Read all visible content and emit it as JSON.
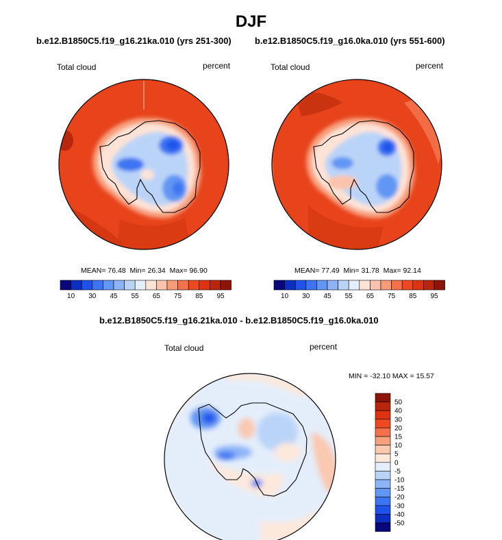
{
  "season_title": "DJF",
  "panels": [
    {
      "case": "b.e12.B1850C5.f19_g16.21ka.010 (yrs 251-300)",
      "variable": "Total cloud",
      "units": "percent",
      "stats": {
        "mean_label": "MEAN=",
        "mean": "76.48",
        "min_label": "Min=",
        "min": "26.34",
        "max_label": "Max=",
        "max": "96.90"
      }
    },
    {
      "case": "b.e12.B1850C5.f19_g16.0ka.010 (yrs 551-600)",
      "variable": "Total cloud",
      "units": "percent",
      "stats": {
        "mean_label": "MEAN=",
        "mean": "77.49",
        "min_label": "Min=",
        "min": "31.78",
        "max_label": "Max=",
        "max": "92.14"
      }
    }
  ],
  "difference": {
    "title": "b.e12.B1850C5.f19_g16.21ka.010 - b.e12.B1850C5.f19_g16.0ka.010",
    "variable": "Total cloud",
    "units": "percent",
    "minmax": "MIN = -32.10 MAX =  15.57"
  },
  "colors": {
    "abs_scale": [
      "#08087a",
      "#0c2fc0",
      "#1f52ea",
      "#3c74f2",
      "#6296f4",
      "#8db4f6",
      "#bad4f8",
      "#e4eefb",
      "#fde3d6",
      "#fbc3ab",
      "#f79b7a",
      "#f3714b",
      "#ee4a22",
      "#dc3410",
      "#b8260b",
      "#8d1408"
    ],
    "diff_scale": [
      "#08087a",
      "#0c2fc0",
      "#1f52ea",
      "#3c74f2",
      "#6296f4",
      "#8db4f6",
      "#bad4f8",
      "#e4eefb",
      "#fde8dc",
      "#fbc8b0",
      "#f7a07e",
      "#f3714b",
      "#ee4a22",
      "#dc3410",
      "#b8260b",
      "#8d1408"
    ]
  },
  "chart_data": [
    {
      "type": "heatmap",
      "title": "b.e12.B1850C5.f19_g16.21ka.010 (yrs 251-300)",
      "variable": "Total cloud",
      "units": "percent",
      "projection": "south polar stereographic",
      "mean": 76.48,
      "min": 26.34,
      "max": 96.9,
      "colorbar_levels": [
        10,
        15,
        20,
        25,
        30,
        35,
        40,
        45,
        50,
        55,
        60,
        65,
        70,
        75,
        80,
        85,
        90,
        95
      ],
      "colorbar_tick_labels": [
        "10",
        "30",
        "45",
        "55",
        "65",
        "75",
        "85",
        "95"
      ]
    },
    {
      "type": "heatmap",
      "title": "b.e12.B1850C5.f19_g16.0ka.010 (yrs 551-600)",
      "variable": "Total cloud",
      "units": "percent",
      "projection": "south polar stereographic",
      "mean": 77.49,
      "min": 31.78,
      "max": 92.14,
      "colorbar_levels": [
        10,
        15,
        20,
        25,
        30,
        35,
        40,
        45,
        50,
        55,
        60,
        65,
        70,
        75,
        80,
        85,
        90,
        95
      ],
      "colorbar_tick_labels": [
        "10",
        "30",
        "45",
        "55",
        "65",
        "75",
        "85",
        "95"
      ]
    },
    {
      "type": "heatmap",
      "title": "b.e12.B1850C5.f19_g16.21ka.010 - b.e12.B1850C5.f19_g16.0ka.010",
      "variable": "Total cloud",
      "units": "percent",
      "projection": "south polar stereographic",
      "min": -32.1,
      "max": 15.57,
      "colorbar_tick_labels": [
        "-50",
        "-40",
        "-30",
        "-20",
        "-15",
        "-10",
        "-5",
        "0",
        "5",
        "10",
        "15",
        "20",
        "30",
        "40",
        "50"
      ]
    }
  ]
}
